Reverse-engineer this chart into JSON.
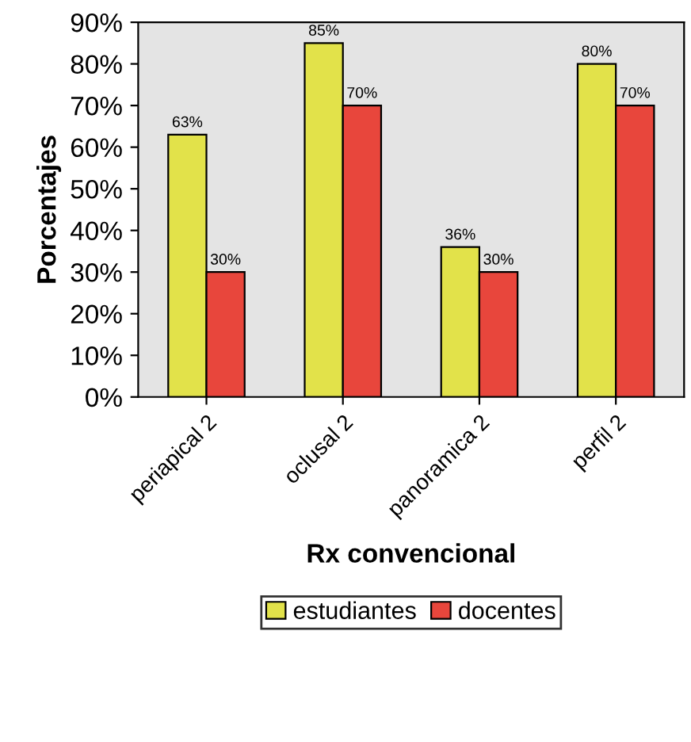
{
  "chart_data": {
    "type": "bar",
    "xlabel": "Rx convencional",
    "ylabel": "Porcentajes",
    "categories": [
      "periapical 2",
      "oclusal 2",
      "panoramica 2",
      "perfil 2"
    ],
    "series": [
      {
        "name": "estudiantes",
        "color": "#e2e24a",
        "values": [
          63,
          85,
          36,
          80
        ],
        "value_labels": [
          "63%",
          "85%",
          "36%",
          "80%"
        ]
      },
      {
        "name": "docentes",
        "color": "#e8463c",
        "values": [
          30,
          70,
          30,
          70
        ],
        "value_labels": [
          "30%",
          "70%",
          "30%",
          "70%"
        ]
      }
    ],
    "ylim": [
      0,
      90
    ],
    "yticks": [
      {
        "value": 0,
        "label": "0%"
      },
      {
        "value": 10,
        "label": "10%"
      },
      {
        "value": 20,
        "label": "20%"
      },
      {
        "value": 30,
        "label": "30%"
      },
      {
        "value": 40,
        "label": "40%"
      },
      {
        "value": 50,
        "label": "50%"
      },
      {
        "value": 60,
        "label": "60%"
      },
      {
        "value": 70,
        "label": "70%"
      },
      {
        "value": 80,
        "label": "80%"
      },
      {
        "value": 90,
        "label": "90%"
      }
    ],
    "grid": false,
    "legend": "bottom"
  }
}
